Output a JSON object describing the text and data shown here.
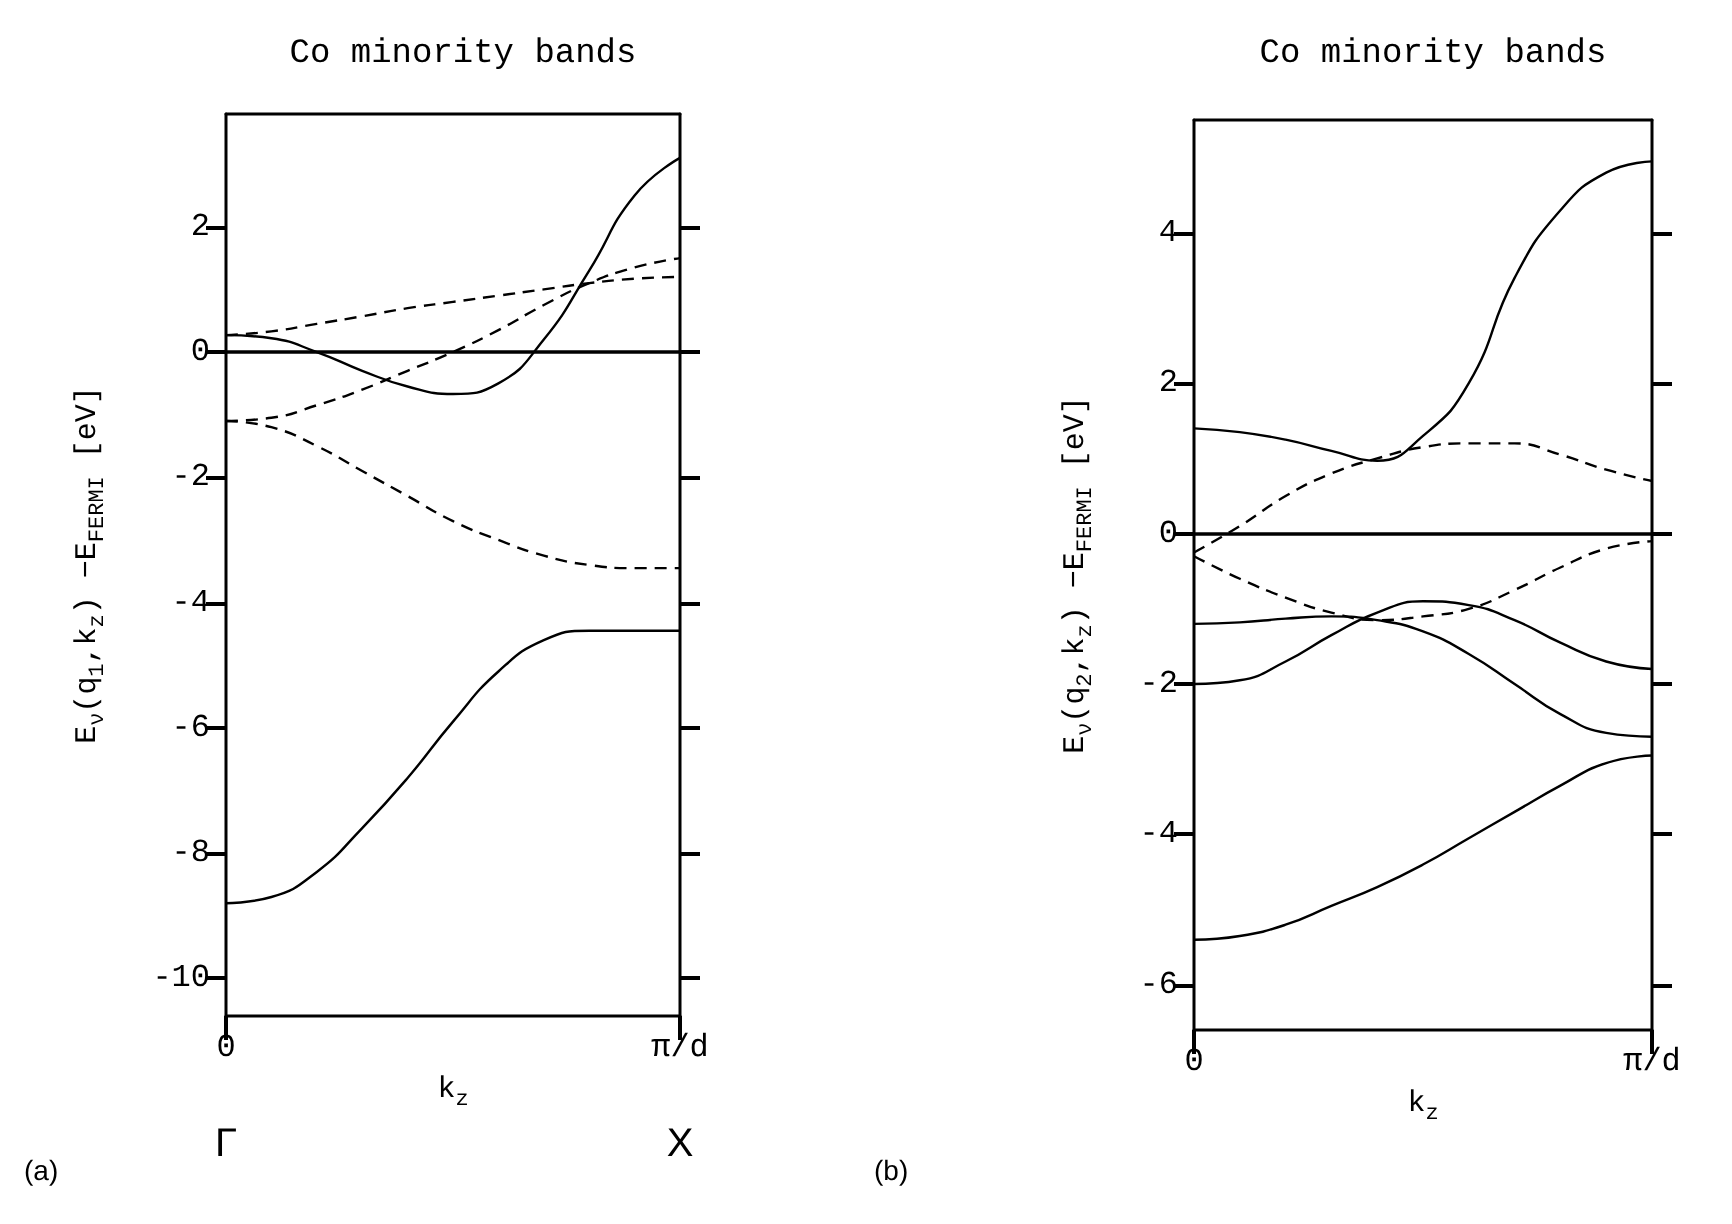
{
  "chart_data": [
    {
      "type": "line",
      "title": "Co minority bands",
      "xlabel": "k$_{z}$",
      "ylabel": "E$_{ν}$(q$_{1}$,k$_{z}$) −E$_{FERMI}$ [eV]",
      "categories": [
        "0",
        null,
        null,
        null,
        null,
        null,
        null,
        null,
        null,
        null,
        "π/d"
      ],
      "series": [
        {
          "color": "#000000",
          "line_style": "solid",
          "values": [
            0.27,
            0.22,
            0.0,
            -0.3,
            -0.55,
            -0.67,
            -0.5,
            0.2,
            1.3,
            2.5,
            3.1
          ]
        },
        {
          "color": "#000000",
          "line_style": "dashed",
          "values": [
            0.27,
            0.33,
            0.45,
            0.57,
            0.7,
            0.8,
            0.9,
            1.0,
            1.1,
            1.17,
            1.2
          ]
        },
        {
          "color": "#000000",
          "line_style": "dashed",
          "values": [
            -1.1,
            -1.05,
            -0.85,
            -0.6,
            -0.3,
            0.0,
            0.35,
            0.75,
            1.1,
            1.35,
            1.5
          ]
        },
        {
          "color": "#000000",
          "line_style": "dashed",
          "values": [
            -1.1,
            -1.2,
            -1.5,
            -1.9,
            -2.3,
            -2.7,
            -3.0,
            -3.25,
            -3.4,
            -3.45,
            -3.45
          ]
        },
        {
          "color": "#000000",
          "line_style": "solid",
          "values": [
            -8.8,
            -8.7,
            -8.3,
            -7.6,
            -6.8,
            -5.9,
            -5.1,
            -4.6,
            -4.45,
            -4.45,
            -4.45
          ]
        }
      ],
      "ylim": [
        -10.6,
        3.8
      ],
      "yticks": [
        -10,
        -8,
        -6,
        -4,
        -2,
        0,
        2
      ],
      "ref_lines": [
        {
          "axis": "y",
          "value": 0,
          "label": null
        }
      ],
      "annotations": [
        "(a)",
        "Γ",
        "X"
      ]
    },
    {
      "type": "line",
      "title": "Co minority bands",
      "xlabel": "k$_{z}$",
      "ylabel": "E$_{ν}$(q$_{2}$,k$_{z}$) −E$_{FERMI}$ [eV]",
      "categories": [
        "0",
        null,
        null,
        null,
        null,
        null,
        null,
        null,
        null,
        null,
        "π/d"
      ],
      "series": [
        {
          "color": "#000000",
          "line_style": "solid",
          "values": [
            1.4,
            1.35,
            1.25,
            1.1,
            0.97,
            1.3,
            2.0,
            3.4,
            4.3,
            4.8,
            4.95
          ]
        },
        {
          "color": "#000000",
          "line_style": "dashed",
          "values": [
            -0.25,
            0.1,
            0.5,
            0.8,
            1.0,
            1.15,
            1.2,
            1.2,
            1.05,
            0.85,
            0.7
          ]
        },
        {
          "color": "#000000",
          "line_style": "dashed",
          "values": [
            -0.3,
            -0.6,
            -0.85,
            -1.05,
            -1.15,
            -1.1,
            -1.0,
            -0.75,
            -0.45,
            -0.2,
            -0.1
          ]
        },
        {
          "color": "#000000",
          "line_style": "solid",
          "values": [
            -1.2,
            -1.18,
            -1.13,
            -1.1,
            -1.15,
            -1.3,
            -1.6,
            -2.0,
            -2.4,
            -2.65,
            -2.7
          ]
        },
        {
          "color": "#000000",
          "line_style": "solid",
          "values": [
            -2.0,
            -1.95,
            -1.7,
            -1.35,
            -1.05,
            -0.9,
            -0.95,
            -1.15,
            -1.45,
            -1.7,
            -1.8
          ]
        },
        {
          "color": "#000000",
          "line_style": "solid",
          "values": [
            -5.4,
            -5.35,
            -5.2,
            -4.95,
            -4.7,
            -4.4,
            -4.05,
            -3.7,
            -3.35,
            -3.05,
            -2.95
          ]
        }
      ],
      "ylim": [
        -6.6,
        5.5
      ],
      "yticks": [
        -6,
        -4,
        -2,
        0,
        2,
        4
      ],
      "ref_lines": [
        {
          "axis": "y",
          "value": 0,
          "label": null
        }
      ],
      "annotations": [
        "(b)"
      ]
    }
  ]
}
